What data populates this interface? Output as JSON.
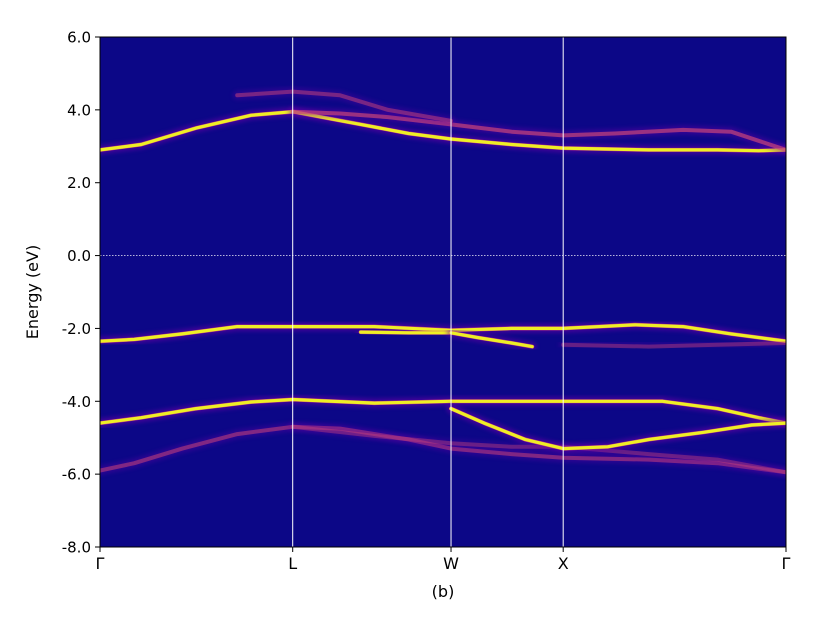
{
  "chart_data": {
    "type": "heatmap",
    "title": "",
    "caption": "(b)",
    "xlabel": "",
    "ylabel": "Energy (eV)",
    "ylim": [
      -8.0,
      6.0
    ],
    "yticks": [
      "-8.0",
      "-6.0",
      "-4.0",
      "-2.0",
      "0.0",
      "2.0",
      "4.0",
      "6.0"
    ],
    "ytick_values": [
      -8,
      -6,
      -4,
      -2,
      0,
      2,
      4,
      6
    ],
    "kpath": [
      {
        "label": "Γ",
        "pos": 0.0
      },
      {
        "label": "L",
        "pos": 0.2809
      },
      {
        "label": "W",
        "pos": 0.5117
      },
      {
        "label": "X",
        "pos": 0.6752
      },
      {
        "label": "Γ",
        "pos": 1.0
      }
    ],
    "fermi_level": 0.0,
    "grid": false,
    "colormap": {
      "background": "#0c0787",
      "low": "#6a00a8",
      "mid": "#cc4778",
      "high": "#f0f921"
    },
    "bands": [
      {
        "name": "valence-lower",
        "x": [
          0,
          0.05,
          0.12,
          0.2,
          0.2809,
          0.35,
          0.45,
          0.5117,
          0.6,
          0.6752,
          0.8,
          0.9,
          1.0
        ],
        "energy": [
          -5.9,
          -5.7,
          -5.3,
          -4.9,
          -4.7,
          -4.75,
          -5.05,
          -5.3,
          -5.45,
          -5.55,
          -5.6,
          -5.7,
          -5.95
        ],
        "weight": 0.6
      },
      {
        "name": "valence-lower-split",
        "x": [
          0.2809,
          0.4,
          0.5117,
          0.6,
          0.6752,
          0.8,
          0.9,
          1.0
        ],
        "energy": [
          -4.7,
          -4.95,
          -5.15,
          -5.25,
          -5.25,
          -5.45,
          -5.6,
          -5.95
        ],
        "weight": 0.45
      },
      {
        "name": "valence-mid",
        "x": [
          0,
          0.06,
          0.14,
          0.22,
          0.2809,
          0.4,
          0.5117,
          0.6,
          0.6752,
          0.82,
          0.9,
          0.96,
          1.0
        ],
        "energy": [
          -4.6,
          -4.45,
          -4.2,
          -4.02,
          -3.95,
          -4.05,
          -4.0,
          -4.0,
          -4.0,
          -4.0,
          -4.2,
          -4.45,
          -4.6
        ],
        "weight": 1.0
      },
      {
        "name": "valence-mid-dispersive",
        "x": [
          0.5117,
          0.56,
          0.62,
          0.6752,
          0.74,
          0.8,
          0.88,
          0.95,
          1.0
        ],
        "energy": [
          -4.2,
          -4.6,
          -5.05,
          -5.3,
          -5.25,
          -5.05,
          -4.85,
          -4.65,
          -4.6
        ],
        "weight": 1.0
      },
      {
        "name": "valence-upper",
        "x": [
          0,
          0.05,
          0.12,
          0.2,
          0.2809,
          0.4,
          0.5117,
          0.6,
          0.6752,
          0.78,
          0.85,
          0.92,
          1.0
        ],
        "energy": [
          -2.35,
          -2.3,
          -2.15,
          -1.95,
          -1.95,
          -1.95,
          -2.05,
          -2.0,
          -2.0,
          -1.9,
          -1.95,
          -2.15,
          -2.35
        ],
        "weight": 1.0
      },
      {
        "name": "valence-upper-flat",
        "x": [
          0.38,
          0.45,
          0.5117
        ],
        "energy": [
          -2.1,
          -2.12,
          -2.12
        ],
        "weight": 1.0
      },
      {
        "name": "valence-upper-dispersive",
        "x": [
          0.5117,
          0.55,
          0.6,
          0.63
        ],
        "energy": [
          -2.12,
          -2.25,
          -2.4,
          -2.5
        ],
        "weight": 0.9
      },
      {
        "name": "valence-upper-low",
        "x": [
          0.6752,
          0.8,
          0.9,
          1.0
        ],
        "energy": [
          -2.45,
          -2.5,
          -2.45,
          -2.4
        ],
        "weight": 0.45
      },
      {
        "name": "conduction-lower",
        "x": [
          0,
          0.06,
          0.14,
          0.22,
          0.2809,
          0.38,
          0.45,
          0.5117,
          0.6,
          0.6752,
          0.8,
          0.9,
          0.96,
          1.0
        ],
        "energy": [
          2.9,
          3.05,
          3.5,
          3.85,
          3.95,
          3.6,
          3.35,
          3.2,
          3.05,
          2.95,
          2.9,
          2.9,
          2.88,
          2.9
        ],
        "weight": 1.0
      },
      {
        "name": "conduction-upper",
        "x": [
          0.2809,
          0.35,
          0.42,
          0.5117,
          0.6,
          0.6752,
          0.75,
          0.85,
          0.92,
          1.0
        ],
        "energy": [
          3.95,
          3.9,
          3.8,
          3.6,
          3.4,
          3.3,
          3.35,
          3.45,
          3.4,
          2.9
        ],
        "weight": 0.75
      },
      {
        "name": "conduction-top",
        "x": [
          0.2,
          0.2809,
          0.35,
          0.42,
          0.5117
        ],
        "energy": [
          4.4,
          4.5,
          4.4,
          4.0,
          3.7
        ],
        "weight": 0.55
      }
    ]
  }
}
